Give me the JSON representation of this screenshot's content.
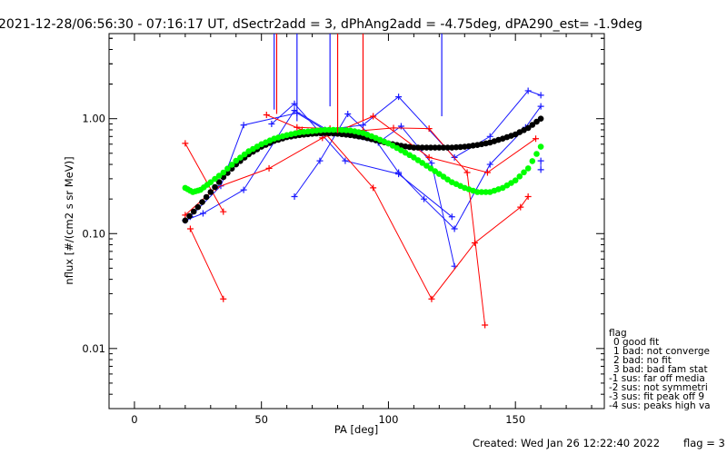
{
  "chart_data": {
    "type": "line",
    "title": "2021-12-28/06:56:30 - 07:16:17 UT, dSectr2add = 3, dPhAng2add = -4.75deg, dPA290_est=  -1.9deg",
    "xlabel": "PA [deg]",
    "ylabel": "nflux [#/(cm2 s sr MeV)]",
    "xlim": [
      -10,
      185
    ],
    "ylim": [
      0.003,
      5.5
    ],
    "yscale": "log",
    "xticks": [
      0,
      50,
      100,
      150
    ],
    "xtick_labels": [
      "0",
      "50",
      "100",
      "150"
    ],
    "yticks": [
      0.01,
      0.1,
      1.0
    ],
    "ytick_labels": [
      "0.01",
      "0.10",
      "1.00"
    ],
    "grid": false,
    "colors": {
      "blue": "#1a1aff",
      "red": "#ff0000",
      "black": "#000000",
      "green": "#00ff00"
    },
    "series": [
      {
        "color": "blue",
        "style": "line-plus",
        "x": [
          20,
          27,
          43,
          63,
          78,
          96,
          105,
          117,
          126
        ],
        "y": [
          0.13,
          0.15,
          0.24,
          1.18,
          0.75,
          0.62,
          0.86,
          0.41,
          0.052
        ]
      },
      {
        "color": "blue",
        "style": "line-plus",
        "x": [
          22,
          34,
          43,
          64,
          75,
          90,
          104,
          126,
          140,
          155,
          160
        ],
        "y": [
          0.14,
          0.26,
          0.88,
          1.12,
          0.8,
          0.88,
          1.55,
          0.46,
          0.7,
          1.75,
          1.6
        ]
      },
      {
        "color": "blue",
        "style": "line-plus",
        "x": [
          63,
          73,
          84,
          95,
          104,
          114,
          126,
          140,
          154,
          160
        ],
        "y": [
          0.21,
          0.43,
          1.1,
          0.65,
          0.34,
          0.2,
          0.11,
          0.4,
          0.84,
          1.28
        ]
      },
      {
        "color": "blue",
        "style": "line-plus",
        "x": [
          54,
          63,
          83,
          104,
          125
        ],
        "y": [
          0.9,
          1.35,
          0.43,
          0.33,
          0.14
        ]
      },
      {
        "color": "blue",
        "style": "line-plus",
        "x": [
          160,
          160
        ],
        "y": [
          0.36,
          0.43
        ]
      },
      {
        "color": "red",
        "style": "line-plus",
        "x": [
          20,
          35
        ],
        "y": [
          0.61,
          0.155
        ]
      },
      {
        "color": "red",
        "style": "line-plus",
        "x": [
          22,
          35
        ],
        "y": [
          0.11,
          0.027
        ]
      },
      {
        "color": "red",
        "style": "line-plus",
        "x": [
          20,
          32,
          53,
          74,
          94,
          116,
          139,
          158
        ],
        "y": [
          0.145,
          0.25,
          0.37,
          0.68,
          1.05,
          0.46,
          0.34,
          0.67
        ]
      },
      {
        "color": "red",
        "style": "line-plus",
        "x": [
          52,
          66,
          75,
          94,
          117,
          134,
          152,
          155
        ],
        "y": [
          1.08,
          0.8,
          0.75,
          0.25,
          0.027,
          0.083,
          0.17,
          0.21
        ]
      },
      {
        "color": "red",
        "style": "line-plus",
        "x": [
          64,
          77,
          90,
          102,
          116,
          131,
          138
        ],
        "y": [
          0.84,
          0.82,
          0.79,
          0.83,
          0.82,
          0.34,
          0.016
        ]
      },
      {
        "color": "black",
        "style": "thick-dots",
        "x": [
          20,
          25,
          30,
          35,
          40,
          45,
          50,
          55,
          60,
          65,
          70,
          75,
          80,
          85,
          90,
          95,
          100,
          105,
          110,
          115,
          120,
          125,
          130,
          135,
          140,
          145,
          150,
          155,
          160
        ],
        "y": [
          0.13,
          0.17,
          0.23,
          0.31,
          0.4,
          0.49,
          0.57,
          0.64,
          0.69,
          0.72,
          0.74,
          0.75,
          0.74,
          0.72,
          0.69,
          0.65,
          0.61,
          0.58,
          0.56,
          0.56,
          0.56,
          0.56,
          0.57,
          0.59,
          0.62,
          0.67,
          0.73,
          0.83,
          1.0
        ]
      },
      {
        "color": "green",
        "style": "thick-dots",
        "x": [
          20,
          23,
          26,
          30,
          35,
          40,
          45,
          50,
          55,
          60,
          65,
          70,
          75,
          80,
          85,
          90,
          95,
          100,
          105,
          110,
          115,
          120,
          125,
          130,
          135,
          140,
          145,
          150,
          155,
          160
        ],
        "y": [
          0.25,
          0.23,
          0.24,
          0.28,
          0.34,
          0.43,
          0.52,
          0.6,
          0.67,
          0.72,
          0.76,
          0.78,
          0.8,
          0.8,
          0.79,
          0.75,
          0.68,
          0.61,
          0.53,
          0.46,
          0.39,
          0.33,
          0.28,
          0.25,
          0.23,
          0.23,
          0.25,
          0.29,
          0.37,
          0.57
        ]
      },
      {
        "color": "blue",
        "style": "vertical-spike",
        "x": [
          55,
          64,
          77,
          121
        ],
        "y_top": [
          5.5,
          5.5,
          5.5,
          5.5
        ],
        "y_bottom": [
          1.2,
          0.95,
          1.28,
          1.05
        ]
      },
      {
        "color": "red",
        "style": "vertical-spike",
        "x": [
          56,
          80,
          90
        ],
        "y_top": [
          5.5,
          5.5,
          5.5
        ],
        "y_bottom": [
          1.1,
          0.75,
          0.95
        ]
      }
    ]
  },
  "legend": {
    "title": "flag",
    "items": [
      " 0 good fit",
      " 1 bad: not converge",
      " 2 bad: no fit",
      " 3 bad: bad fam stat",
      "-1 sus: far off media",
      "-2 sus: not symmetri",
      "-3 sus: fit peak off 9",
      "-4 sus: peaks high va"
    ]
  },
  "footer": {
    "created": "Created: Wed Jan 26 12:22:40 2022",
    "flag": "flag = 3"
  }
}
